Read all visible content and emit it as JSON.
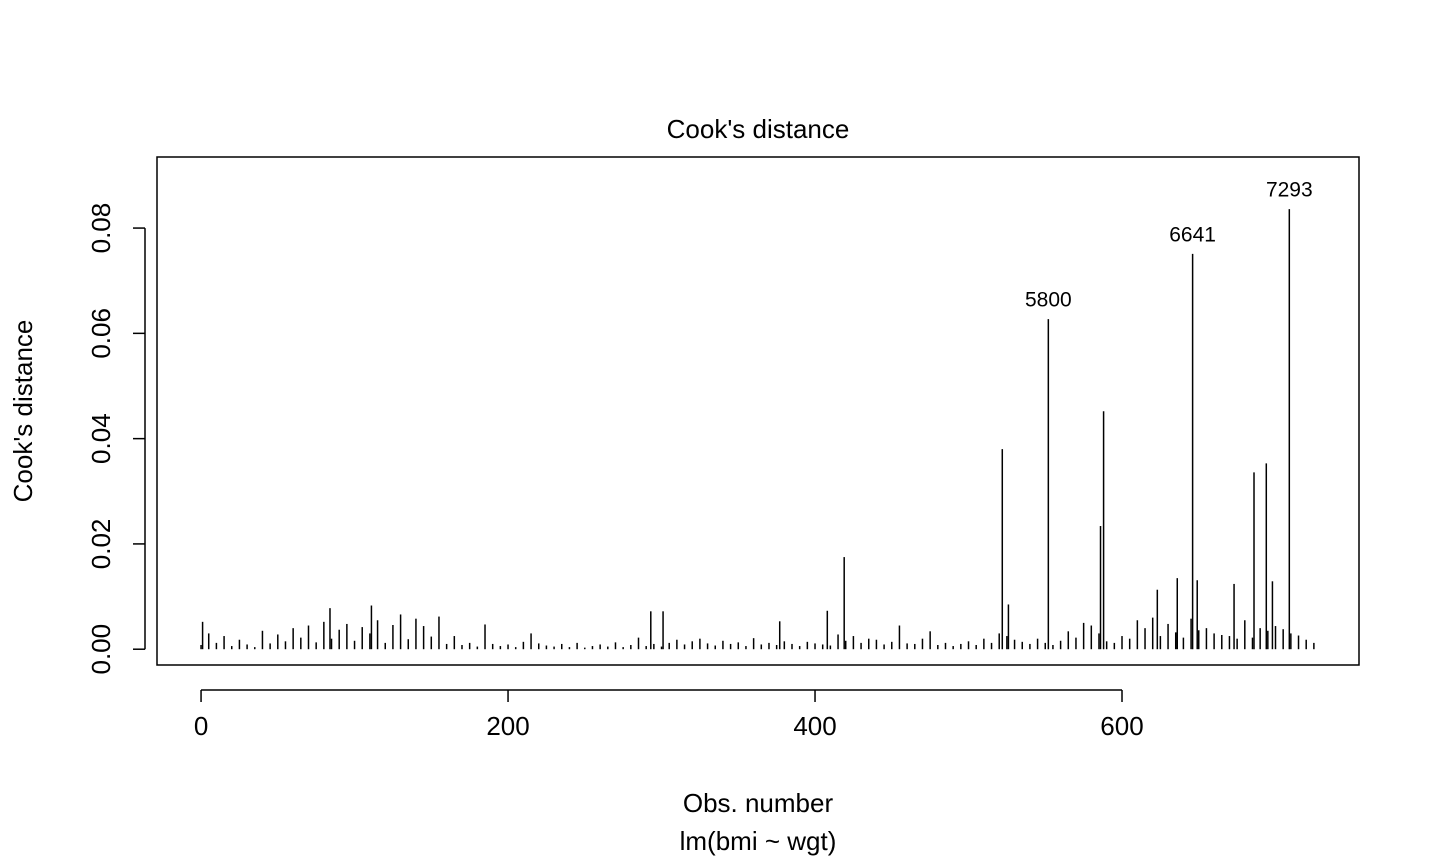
{
  "chart_data": {
    "type": "spike",
    "title": "Cook's distance",
    "xlabel": "Obs. number",
    "subtitle": "lm(bmi ~ wgt)",
    "ylabel": "Cook's distance",
    "xlim": [
      -28.7,
      754.4
    ],
    "ylim": [
      -0.003,
      0.0935
    ],
    "xticks": [
      0,
      200,
      400,
      600
    ],
    "yticks": [
      {
        "value": 0,
        "label": "0.00"
      },
      0.02,
      0.04,
      0.06,
      0.08
    ],
    "color": "#000000",
    "x": [
      0,
      5,
      10,
      15,
      20,
      25,
      30,
      35,
      40,
      45,
      50,
      55,
      60,
      65,
      70,
      75,
      80,
      85,
      90,
      95,
      100,
      105,
      110,
      115,
      120,
      125,
      130,
      135,
      140,
      145,
      150,
      155,
      160,
      165,
      170,
      175,
      180,
      185,
      190,
      195,
      200,
      205,
      210,
      215,
      220,
      225,
      230,
      235,
      240,
      245,
      250,
      255,
      260,
      265,
      270,
      275,
      280,
      285,
      290,
      295,
      300,
      305,
      310,
      315,
      320,
      325,
      330,
      335,
      340,
      345,
      350,
      355,
      360,
      365,
      370,
      375,
      380,
      385,
      390,
      395,
      400,
      405,
      410,
      415,
      420,
      425,
      430,
      435,
      440,
      445,
      450,
      455,
      460,
      465,
      470,
      475,
      480,
      485,
      490,
      495,
      500,
      505,
      510,
      515,
      520,
      525,
      530,
      535,
      540,
      545,
      550,
      555,
      560,
      565,
      570,
      575,
      580,
      585,
      590,
      595,
      600,
      605,
      610,
      615,
      620,
      625,
      630,
      635,
      640,
      645,
      650,
      655,
      660,
      665,
      670,
      675,
      680,
      685,
      690,
      695,
      700,
      705,
      710,
      715,
      720,
      725,
      1,
      84,
      111,
      293,
      301,
      377,
      408,
      419,
      522,
      526,
      586,
      588,
      623,
      636,
      649,
      673,
      686,
      694,
      698
    ],
    "values": [
      0.0008,
      0.003,
      0.0012,
      0.0025,
      0.0006,
      0.0018,
      0.0009,
      0.0004,
      0.0035,
      0.0011,
      0.0028,
      0.0015,
      0.004,
      0.0022,
      0.0045,
      0.0013,
      0.0052,
      0.002,
      0.0037,
      0.0048,
      0.0016,
      0.0042,
      0.003,
      0.0055,
      0.0012,
      0.0046,
      0.0066,
      0.0019,
      0.0058,
      0.0044,
      0.0024,
      0.0062,
      0.001,
      0.0025,
      0.0008,
      0.0012,
      0.0005,
      0.0047,
      0.001,
      0.0006,
      0.0009,
      0.0004,
      0.0014,
      0.003,
      0.0011,
      0.0007,
      0.0005,
      0.001,
      0.0004,
      0.0012,
      0.0003,
      0.0006,
      0.0009,
      0.0005,
      0.0013,
      0.0004,
      0.0008,
      0.0022,
      0.0006,
      0.001,
      0.0005,
      0.0012,
      0.0018,
      0.0009,
      0.0015,
      0.002,
      0.0011,
      0.0007,
      0.0016,
      0.001,
      0.0013,
      0.0006,
      0.0021,
      0.0009,
      0.0012,
      0.0008,
      0.0015,
      0.001,
      0.0006,
      0.0014,
      0.0011,
      0.0009,
      0.0007,
      0.0028,
      0.0016,
      0.0025,
      0.0012,
      0.002,
      0.0018,
      0.0009,
      0.0014,
      0.0045,
      0.0011,
      0.001,
      0.002,
      0.0034,
      0.0008,
      0.0012,
      0.0006,
      0.001,
      0.0015,
      0.0008,
      0.002,
      0.0012,
      0.003,
      0.0025,
      0.0018,
      0.0014,
      0.001,
      0.002,
      0.0012,
      0.0008,
      0.0016,
      0.0034,
      0.0022,
      0.005,
      0.0045,
      0.003,
      0.0015,
      0.0012,
      0.0025,
      0.002,
      0.0055,
      0.004,
      0.006,
      0.0025,
      0.0048,
      0.0032,
      0.0022,
      0.0058,
      0.0036,
      0.004,
      0.003,
      0.0027,
      0.0025,
      0.002,
      0.0055,
      0.0022,
      0.004,
      0.0035,
      0.0044,
      0.0038,
      0.003,
      0.0026,
      0.0018,
      0.0012,
      0.0052,
      0.0078,
      0.0083,
      0.0072,
      0.0072,
      0.0053,
      0.0073,
      0.0175,
      0.038,
      0.0085,
      0.0234,
      0.0452,
      0.0113,
      0.0135,
      0.0131,
      0.0124,
      0.0336,
      0.0353,
      0.0129
    ],
    "labeled_points": [
      {
        "x": 552,
        "y": 0.0627,
        "label": "5800"
      },
      {
        "x": 646,
        "y": 0.0751,
        "label": "6641"
      },
      {
        "x": 709,
        "y": 0.0836,
        "label": "7293"
      }
    ]
  }
}
